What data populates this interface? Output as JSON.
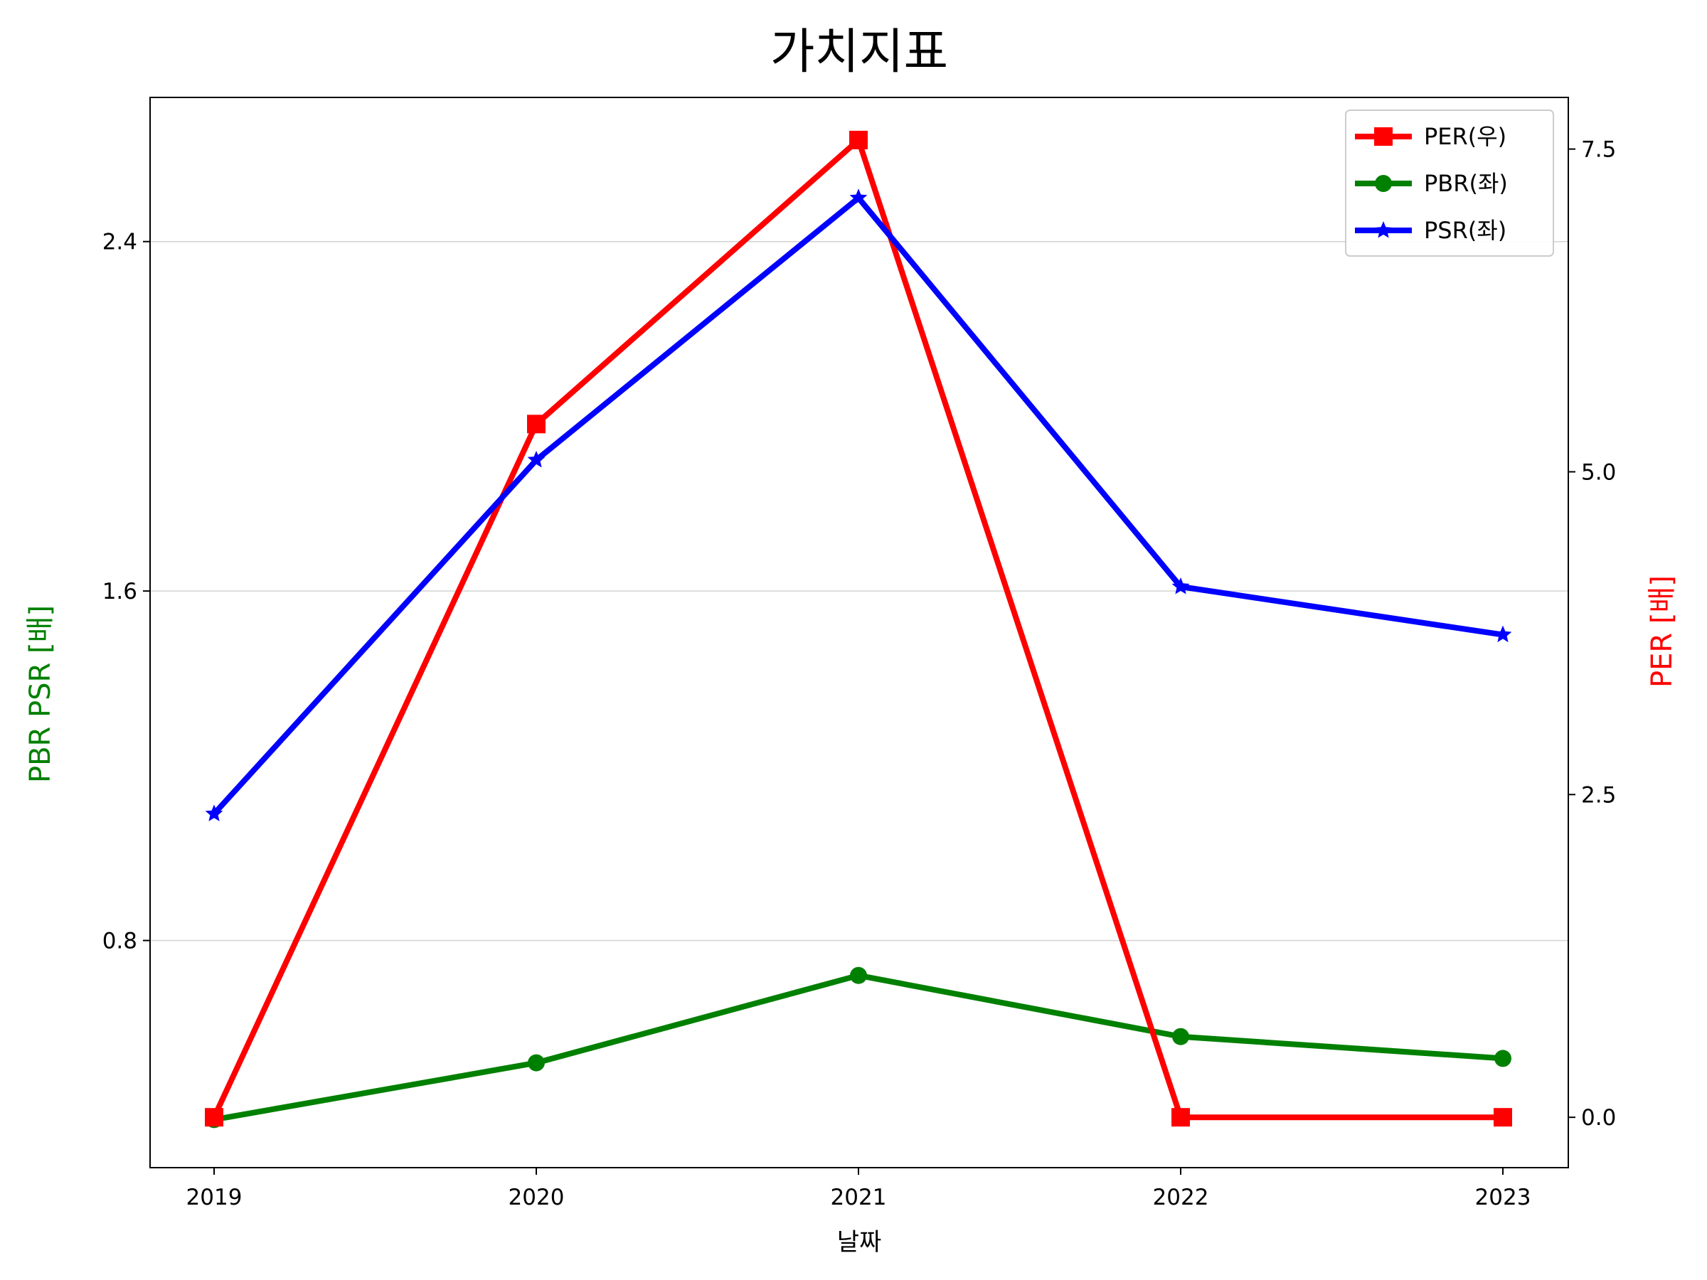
{
  "chart_data": {
    "type": "line",
    "title": "가치지표",
    "xlabel": "날짜",
    "ylabel_left": "PBR PSR [배]",
    "ylabel_right": "PER [배]",
    "left_axis_color": "#008000",
    "right_axis_color": "#ff0000",
    "categories": [
      "2019",
      "2020",
      "2021",
      "2022",
      "2023"
    ],
    "ylim_left": [
      0.28,
      2.73
    ],
    "ylim_right": [
      -0.39,
      7.9
    ],
    "yticks_left": [
      "0.8",
      "1.6",
      "2.4"
    ],
    "yticks_right": [
      "0.0",
      "2.5",
      "5.0",
      "7.5"
    ],
    "grid": "horizontal (left axis)",
    "legend_position": "top-right",
    "series": [
      {
        "name": "PER(우)",
        "axis": "right",
        "color": "#ff0000",
        "marker": "square",
        "values": [
          0.0,
          5.37,
          7.57,
          0.0,
          0.0
        ]
      },
      {
        "name": "PBR(좌)",
        "axis": "left",
        "color": "#008000",
        "marker": "circle",
        "values": [
          0.39,
          0.52,
          0.72,
          0.58,
          0.53
        ]
      },
      {
        "name": "PSR(좌)",
        "axis": "left",
        "color": "#0000ff",
        "marker": "star",
        "values": [
          1.09,
          1.9,
          2.5,
          1.61,
          1.5
        ]
      }
    ]
  }
}
